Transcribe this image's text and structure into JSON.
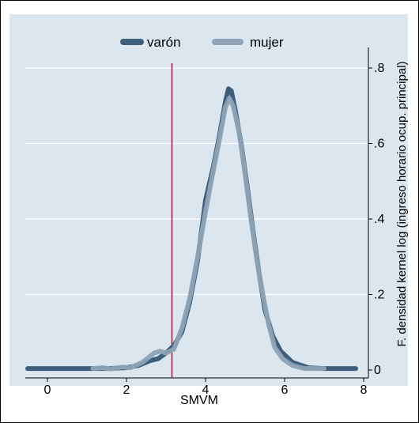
{
  "chart_data": {
    "type": "line",
    "title": "",
    "xlabel": "SMVM",
    "ylabel": "F. densidad  kernel log (ingreso horario ocup. principal)",
    "xlim": [
      -0.5,
      8.0
    ],
    "ylim": [
      0,
      0.82
    ],
    "x_ticks": [
      0,
      2,
      4,
      6,
      8
    ],
    "x_tick_labels": [
      "0",
      "2",
      "4",
      "6",
      "8"
    ],
    "y_ticks": [
      0,
      0.2,
      0.4,
      0.6,
      0.8
    ],
    "y_tick_labels": [
      "0",
      ".2",
      ".4",
      ".6",
      ".8"
    ],
    "y_axis_side": "right",
    "grid": true,
    "legend_position": "top-center",
    "reference_line": {
      "x": 3.15,
      "color": "#b0103a"
    },
    "colors": {
      "plot_bg": "#dbe6ef",
      "grid": "#ffffff",
      "frame": "#000000"
    },
    "series": [
      {
        "name": "varón",
        "color": "#3e5f7c",
        "points": [
          [
            -0.5,
            0.004
          ],
          [
            1.5,
            0.004
          ],
          [
            2.0,
            0.006
          ],
          [
            2.3,
            0.012
          ],
          [
            2.6,
            0.025
          ],
          [
            2.8,
            0.03
          ],
          [
            3.0,
            0.045
          ],
          [
            3.2,
            0.065
          ],
          [
            3.4,
            0.1
          ],
          [
            3.6,
            0.18
          ],
          [
            3.8,
            0.29
          ],
          [
            4.0,
            0.45
          ],
          [
            4.2,
            0.54
          ],
          [
            4.35,
            0.62
          ],
          [
            4.5,
            0.71
          ],
          [
            4.58,
            0.745
          ],
          [
            4.65,
            0.74
          ],
          [
            4.75,
            0.69
          ],
          [
            4.9,
            0.6
          ],
          [
            5.05,
            0.49
          ],
          [
            5.2,
            0.37
          ],
          [
            5.35,
            0.26
          ],
          [
            5.5,
            0.16
          ],
          [
            5.7,
            0.09
          ],
          [
            5.9,
            0.05
          ],
          [
            6.2,
            0.02
          ],
          [
            6.6,
            0.006
          ],
          [
            7.0,
            0.004
          ],
          [
            7.5,
            0.004
          ],
          [
            7.8,
            0.004
          ]
        ]
      },
      {
        "name": "mujer",
        "color": "#8ea3b6",
        "points": [
          [
            1.15,
            0.004
          ],
          [
            1.4,
            0.006
          ],
          [
            1.6,
            0.003
          ],
          [
            1.9,
            0.008
          ],
          [
            2.1,
            0.006
          ],
          [
            2.4,
            0.02
          ],
          [
            2.7,
            0.045
          ],
          [
            2.85,
            0.05
          ],
          [
            3.0,
            0.045
          ],
          [
            3.2,
            0.055
          ],
          [
            3.4,
            0.11
          ],
          [
            3.6,
            0.19
          ],
          [
            3.8,
            0.3
          ],
          [
            4.0,
            0.42
          ],
          [
            4.2,
            0.53
          ],
          [
            4.35,
            0.61
          ],
          [
            4.5,
            0.695
          ],
          [
            4.6,
            0.72
          ],
          [
            4.7,
            0.7
          ],
          [
            4.85,
            0.63
          ],
          [
            5.0,
            0.52
          ],
          [
            5.15,
            0.4
          ],
          [
            5.3,
            0.29
          ],
          [
            5.45,
            0.2
          ],
          [
            5.6,
            0.12
          ],
          [
            5.75,
            0.06
          ],
          [
            5.95,
            0.03
          ],
          [
            6.2,
            0.012
          ],
          [
            6.5,
            0.004
          ],
          [
            6.8,
            0.004
          ],
          [
            7.0,
            0.004
          ]
        ]
      }
    ]
  }
}
